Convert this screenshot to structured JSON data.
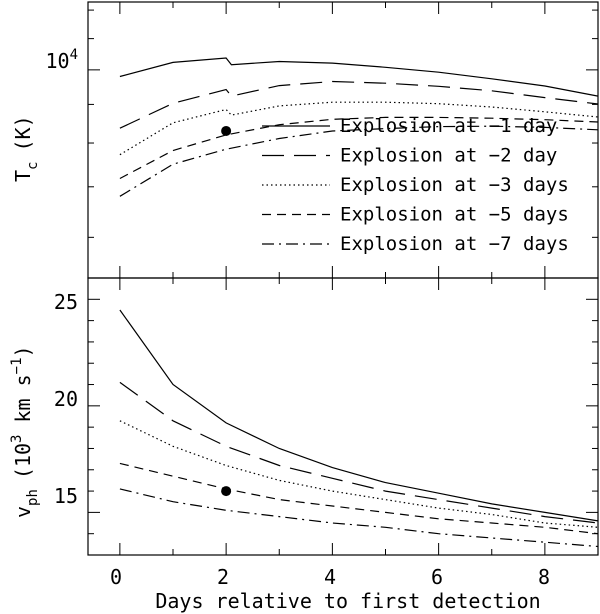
{
  "chart_data": [
    {
      "type": "line",
      "ylabel": "T",
      "ylabel_sub": "c",
      "ylabel_unit": "(K)",
      "yscale": "log",
      "xlim": [
        -0.6,
        9.0
      ],
      "ylim": [
        5300,
        12300
      ],
      "yticks": [
        {
          "value": 10000,
          "base": "10",
          "exp": "4"
        }
      ],
      "legend_position": "lower-right",
      "series": [
        {
          "name": "Explosion at −1 day",
          "dash": "solid",
          "x": [
            0,
            1,
            2,
            2.1,
            3,
            4,
            5,
            6,
            7,
            8,
            9
          ],
          "y": [
            9800,
            10230,
            10370,
            10160,
            10260,
            10210,
            10080,
            9930,
            9730,
            9520,
            9230
          ]
        },
        {
          "name": "Explosion at −2 day",
          "dash": "longdash",
          "x": [
            0,
            1,
            2,
            2.1,
            3,
            4,
            5,
            6,
            7,
            8,
            9
          ],
          "y": [
            8370,
            9030,
            9420,
            9230,
            9530,
            9650,
            9600,
            9510,
            9380,
            9190,
            9010
          ]
        },
        {
          "name": "Explosion at −3 days",
          "dash": "dotted",
          "x": [
            0,
            1,
            2,
            2.1,
            3,
            4,
            5,
            6,
            7,
            8,
            9
          ],
          "y": [
            7720,
            8510,
            8860,
            8710,
            8960,
            9060,
            9060,
            9020,
            8930,
            8800,
            8660
          ]
        },
        {
          "name": "Explosion at −5 days",
          "dash": "dashed",
          "x": [
            0,
            1,
            2,
            3,
            4,
            5,
            6,
            7,
            8,
            9
          ],
          "y": [
            7180,
            7820,
            8200,
            8460,
            8600,
            8650,
            8650,
            8630,
            8590,
            8530
          ]
        },
        {
          "name": "Explosion at −7 days",
          "dash": "dashdot",
          "x": [
            0,
            1,
            2,
            3,
            4,
            5,
            6,
            7,
            8,
            9
          ],
          "y": [
            6800,
            7500,
            7850,
            8110,
            8300,
            8360,
            8410,
            8420,
            8390,
            8330
          ]
        }
      ],
      "points": [
        {
          "x": 2,
          "y": 8300
        }
      ]
    },
    {
      "type": "line",
      "xlabel": "Days relative to first detection",
      "ylabel": "v",
      "ylabel_sub": "ph",
      "ylabel_unit_pre": "(10",
      "ylabel_unit_exp": "3",
      "ylabel_unit_mid": " km s",
      "ylabel_unit_exp2": "−1",
      "ylabel_unit_post": ")",
      "xlim": [
        -0.6,
        9.0
      ],
      "ylim": [
        13.0,
        26.0
      ],
      "xticks": [
        0,
        2,
        4,
        6,
        8
      ],
      "yticks": [
        15,
        20,
        25
      ],
      "series": [
        {
          "name": "Explosion at −1 day",
          "dash": "solid",
          "x": [
            0,
            1,
            2,
            3,
            4,
            5,
            6,
            7,
            8,
            9
          ],
          "y": [
            24.5,
            21.0,
            19.2,
            18.0,
            17.1,
            16.4,
            15.9,
            15.4,
            15.0,
            14.6
          ]
        },
        {
          "name": "Explosion at −2 day",
          "dash": "longdash",
          "x": [
            0,
            1,
            2,
            3,
            4,
            5,
            6,
            7,
            8,
            9
          ],
          "y": [
            21.1,
            19.3,
            18.1,
            17.2,
            16.6,
            16.0,
            15.6,
            15.2,
            14.8,
            14.5
          ]
        },
        {
          "name": "Explosion at −3 days",
          "dash": "dotted",
          "x": [
            0,
            1,
            2,
            3,
            4,
            5,
            6,
            7,
            8,
            9
          ],
          "y": [
            19.3,
            18.1,
            17.2,
            16.5,
            16.0,
            15.6,
            15.2,
            14.9,
            14.5,
            14.3
          ]
        },
        {
          "name": "Explosion at −5 days",
          "dash": "dashed",
          "x": [
            0,
            1,
            2,
            3,
            4,
            5,
            6,
            7,
            8,
            9
          ],
          "y": [
            17.3,
            16.7,
            16.1,
            15.6,
            15.3,
            15.0,
            14.7,
            14.5,
            14.3,
            14.0
          ]
        },
        {
          "name": "Explosion at −7 days",
          "dash": "dashdot",
          "x": [
            0,
            1,
            2,
            3,
            4,
            5,
            6,
            7,
            8,
            9
          ],
          "y": [
            16.1,
            15.5,
            15.1,
            14.8,
            14.5,
            14.3,
            14.0,
            13.8,
            13.6,
            13.4
          ]
        }
      ],
      "points": [
        {
          "x": 2,
          "y": 16.0
        }
      ]
    }
  ]
}
